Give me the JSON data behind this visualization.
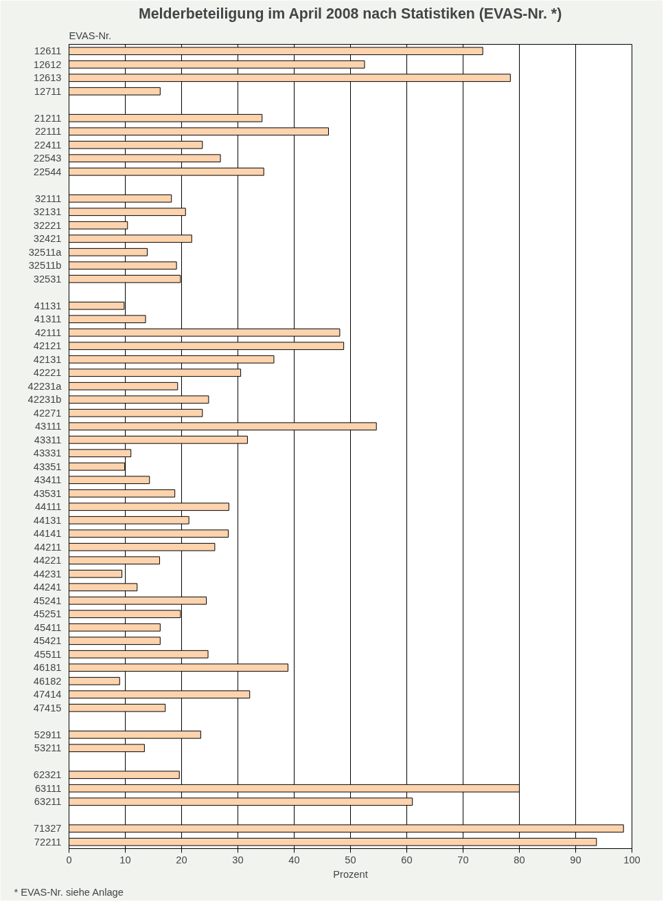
{
  "chart_data": {
    "type": "bar",
    "orientation": "horizontal",
    "title": "Melderbeteiligung im April 2008 nach Statistiken (EVAS-Nr. *)",
    "ylabel": "EVAS-Nr.",
    "xlabel": "Prozent",
    "annotations": [
      "* EVAS-Nr. siehe Anlage"
    ],
    "categories": [
      "12611",
      "12612",
      "12613",
      "12711",
      null,
      "21211",
      "22111",
      "22411",
      "22543",
      "22544",
      null,
      "32111",
      "32131",
      "32221",
      "32421",
      "32511a",
      "32511b",
      "32531",
      null,
      "41131",
      "41311",
      "42111",
      "42121",
      "42131",
      "42221",
      "42231a",
      "42231b",
      "42271",
      "43111",
      "43311",
      "43331",
      "43351",
      "43411",
      "43531",
      "44111",
      "44131",
      "44141",
      "44211",
      "44221",
      "44231",
      "44241",
      "45241",
      "45251",
      "45411",
      "45421",
      "45511",
      "46181",
      "46182",
      "47414",
      "47415",
      null,
      "52911",
      "53211",
      null,
      "62321",
      "63111",
      "63211",
      null,
      "71327",
      "72211"
    ],
    "values": [
      73.5,
      52.5,
      78.4,
      16.2,
      null,
      34.3,
      46.1,
      23.7,
      26.9,
      34.6,
      null,
      18.2,
      20.7,
      10.4,
      21.8,
      13.9,
      19.1,
      19.8,
      null,
      9.8,
      13.6,
      48.1,
      48.8,
      36.4,
      30.5,
      19.3,
      24.8,
      23.7,
      54.6,
      31.7,
      11.0,
      9.9,
      14.3,
      18.8,
      28.4,
      21.3,
      28.3,
      25.9,
      16.1,
      9.4,
      12.1,
      24.4,
      19.8,
      16.2,
      16.2,
      24.7,
      38.9,
      9.0,
      32.1,
      17.1,
      null,
      23.4,
      13.4,
      null,
      19.6,
      80.0,
      61.0,
      null,
      98.5,
      93.7
    ],
    "color": "#fcd3ad",
    "xlim": [
      0,
      100
    ],
    "xticks": [
      0,
      10,
      20,
      30,
      40,
      50,
      60,
      70,
      80,
      90,
      100
    ],
    "grid": "x"
  }
}
